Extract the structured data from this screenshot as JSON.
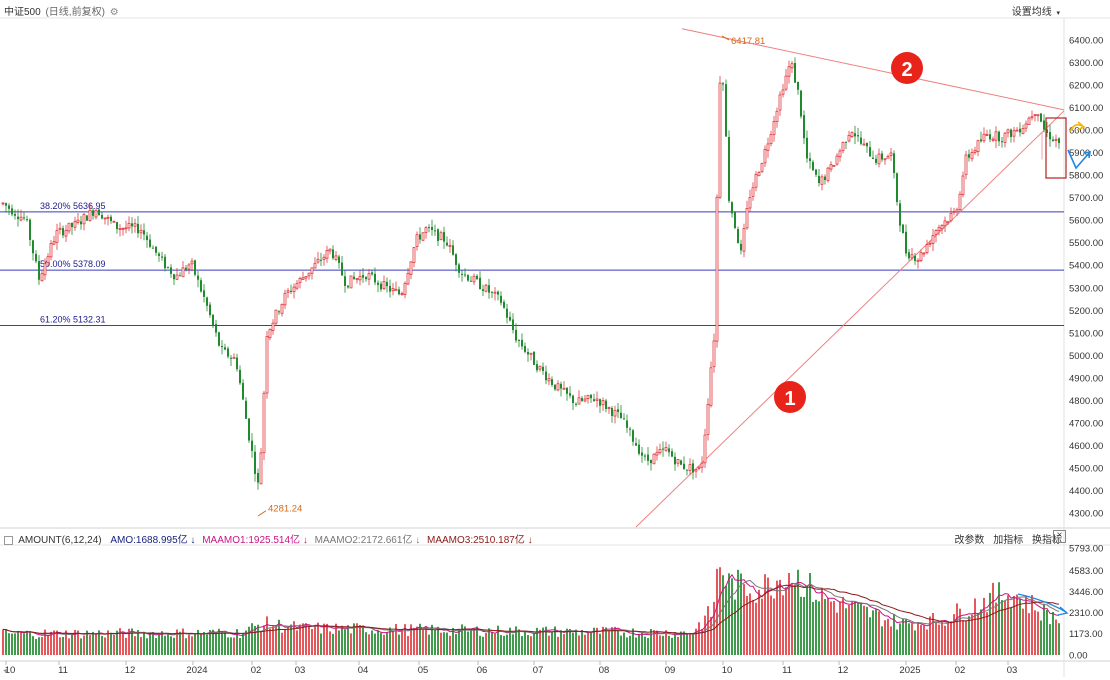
{
  "header": {
    "title": "中证500",
    "subtitle": "(日线,前复权)",
    "settings_label": "设置均线"
  },
  "indicator_bar": {
    "name": "AMOUNT(6,12,24)",
    "amo": "AMO:1688.995亿",
    "maamo1": "MAAMO1:1925.514亿",
    "maamo2": "MAAMO2:2172.661亿",
    "maamo3": "MAAMO3:2510.187亿",
    "btn_params": "改参数",
    "btn_add": "加指标",
    "btn_switch": "换指标",
    "btn_close": "×"
  },
  "colors": {
    "up": "#e0393e",
    "down": "#1f8a2e",
    "fib": "#3b3bbd",
    "trend": "#f08080",
    "amo": "#1a237e",
    "maamo1": "#c71585",
    "maamo2": "#777777",
    "maamo3": "#8b1a1a",
    "marker_red": "#e8231a",
    "arrow_yellow": "#f4b400",
    "arrow_blue": "#1e88e5"
  },
  "chart_data": {
    "type": "candlestick",
    "x_ticks": [
      "10",
      "11",
      "12",
      "2024",
      "02",
      "03",
      "04",
      "05",
      "06",
      "07",
      "08",
      "09",
      "10",
      "11",
      "12",
      "2025",
      "02",
      "03"
    ],
    "y_ticks": [
      "6400.00",
      "6300.00",
      "6200.00",
      "6100.00",
      "6000.00",
      "5900.00",
      "5800.00",
      "5700.00",
      "5600.00",
      "5500.00",
      "5400.00",
      "5300.00",
      "5200.00",
      "5100.00",
      "5000.00",
      "4900.00",
      "4800.00",
      "4700.00",
      "4600.00",
      "4500.00",
      "4400.00",
      "4300.00"
    ],
    "ylim": [
      4285,
      6520
    ],
    "annotations": [
      {
        "text": "6417.81",
        "value": 6417.81
      },
      {
        "text": "4281.24",
        "value": 4281.24
      }
    ],
    "fib_levels": [
      {
        "label": "38.20% 5636.95",
        "value": 5636.95
      },
      {
        "label": "50.00% 5378.09",
        "value": 5378.09
      },
      {
        "label": "61.20% 5132.31",
        "value": 5132.31
      }
    ],
    "markers": [
      "1",
      "2"
    ],
    "volume": {
      "y_ticks": [
        "5793.00",
        "4583.00",
        "3446.00",
        "2310.00",
        "1173.00",
        "0.00"
      ],
      "ylim": [
        0,
        5900
      ]
    }
  }
}
